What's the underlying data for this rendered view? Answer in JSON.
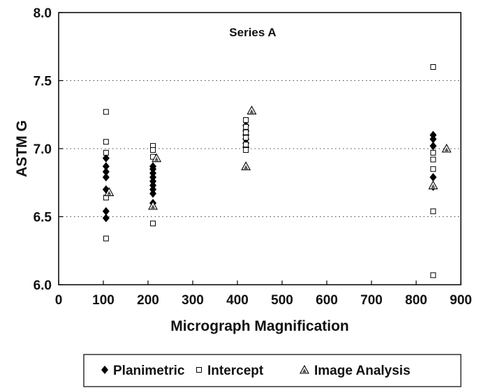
{
  "chart_data": {
    "type": "scatter",
    "title": "Series A",
    "xlabel": "Micrograph Magnification",
    "ylabel": "ASTM G",
    "xlim": [
      0,
      900
    ],
    "ylim": [
      6.0,
      8.0
    ],
    "xticks": [
      "0",
      "100",
      "200",
      "300",
      "400",
      "500",
      "600",
      "700",
      "800",
      "900"
    ],
    "yticks": [
      "6.0",
      "6.5",
      "7.0",
      "7.5",
      "8.0"
    ],
    "grid": "horizontal dotted",
    "legend_position": "bottom",
    "series": [
      {
        "name": "Planimetric",
        "marker": "diamond",
        "points": [
          [
            106,
            6.93
          ],
          [
            106,
            6.87
          ],
          [
            106,
            6.83
          ],
          [
            106,
            6.79
          ],
          [
            106,
            6.7
          ],
          [
            106,
            6.54
          ],
          [
            106,
            6.49
          ],
          [
            211,
            6.87
          ],
          [
            211,
            6.85
          ],
          [
            211,
            6.82
          ],
          [
            211,
            6.79
          ],
          [
            211,
            6.76
          ],
          [
            211,
            6.73
          ],
          [
            211,
            6.7
          ],
          [
            211,
            6.67
          ],
          [
            211,
            6.6
          ],
          [
            419,
            7.17
          ],
          [
            419,
            7.13
          ],
          [
            419,
            7.1
          ],
          [
            419,
            7.07
          ],
          [
            419,
            7.04
          ],
          [
            419,
            7.01
          ],
          [
            838,
            7.1
          ],
          [
            838,
            7.07
          ],
          [
            838,
            7.02
          ],
          [
            838,
            6.79
          ],
          [
            838,
            6.72
          ]
        ]
      },
      {
        "name": "Intercept",
        "marker": "square",
        "points": [
          [
            106,
            7.27
          ],
          [
            106,
            7.05
          ],
          [
            106,
            6.97
          ],
          [
            106,
            6.64
          ],
          [
            106,
            6.34
          ],
          [
            211,
            7.02
          ],
          [
            211,
            6.99
          ],
          [
            211,
            6.94
          ],
          [
            211,
            6.45
          ],
          [
            419,
            7.21
          ],
          [
            419,
            7.16
          ],
          [
            419,
            7.12
          ],
          [
            419,
            7.08
          ],
          [
            419,
            7.03
          ],
          [
            419,
            6.99
          ],
          [
            838,
            7.6
          ],
          [
            838,
            6.97
          ],
          [
            838,
            6.92
          ],
          [
            838,
            6.85
          ],
          [
            838,
            6.54
          ],
          [
            838,
            6.07
          ]
        ]
      },
      {
        "name": "Image Analysis",
        "marker": "triangle",
        "points": [
          [
            113,
            6.68
          ],
          [
            219,
            6.93
          ],
          [
            211,
            6.58
          ],
          [
            432,
            7.28
          ],
          [
            419,
            6.87
          ],
          [
            868,
            7.0
          ],
          [
            838,
            6.73
          ]
        ]
      }
    ]
  }
}
